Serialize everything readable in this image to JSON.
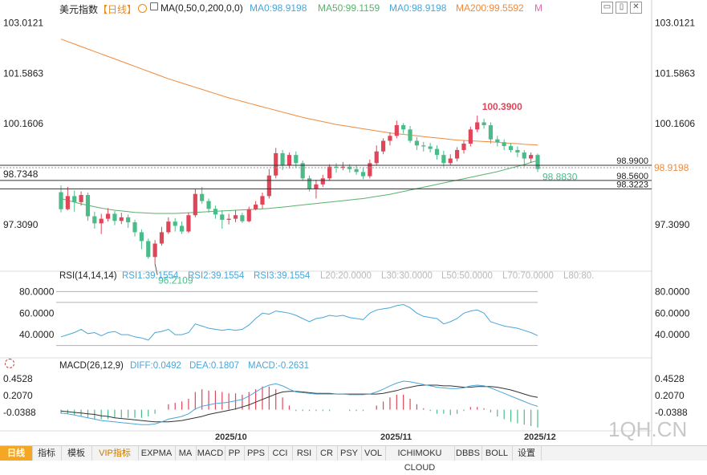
{
  "header": {
    "symbol": "美元指数",
    "period": "【日线】",
    "ma_params": "MA(0,50,0,200,0,0)",
    "ma_values": [
      {
        "label": "MA0:98.9198",
        "color": "#4aa6d8"
      },
      {
        "label": "MA50:99.1159",
        "color": "#58b26b"
      },
      {
        "label": "MA0:98.9198",
        "color": "#4aa6d8"
      },
      {
        "label": "MA200:99.5592",
        "color": "#ef8a3c"
      }
    ],
    "suffix": "M"
  },
  "rsi_header": {
    "title": "RSI(14,14,14)",
    "values": [
      {
        "label": "RSI1:39.1554",
        "color": "#4aa6d8"
      },
      {
        "label": "RSI2:39.1554",
        "color": "#4aa6d8"
      },
      {
        "label": "RSI3:39.1554",
        "color": "#4aa6d8"
      },
      {
        "label": "L20:20.0000",
        "color": "#b8b8b8"
      },
      {
        "label": "L30:30.0000",
        "color": "#b8b8b8"
      },
      {
        "label": "L50:50.0000",
        "color": "#b8b8b8"
      },
      {
        "label": "L70:70.0000",
        "color": "#b8b8b8"
      },
      {
        "label": "L80:80.",
        "color": "#b8b8b8"
      }
    ]
  },
  "macd_header": {
    "title": "MACD(26,12,9)",
    "values": [
      {
        "label": "DIFF:0.0492",
        "color": "#4aa6d8"
      },
      {
        "label": "DEA:0.1807",
        "color": "#4aa6d8"
      },
      {
        "label": "MACD:-0.2631",
        "color": "#4aa6d8"
      }
    ]
  },
  "toolbar": {
    "tabs": [
      "日线",
      "指标",
      "模板",
      "VIP指标",
      "EXPMA",
      "MA",
      "MACD",
      "PP",
      "PPS",
      "CCI",
      "RSI",
      "CR",
      "PSY",
      "VOL",
      "ICHIMOKU CLOUD",
      "DBBS",
      "BOLL",
      "设置"
    ]
  },
  "watermark": "1QH.CN",
  "colors": {
    "up": "#e0455a",
    "down": "#4cbb8a",
    "ma200": "#ef8a3c",
    "ma50": "#58b26b",
    "rsi": "#4aa6d8",
    "diff": "#4aa6d8",
    "dea": "#333333"
  },
  "chart_data": [
    {
      "type": "candlestick",
      "title": "美元指数 日线",
      "x": [
        "2025/10",
        "2025/11",
        "2025/12"
      ],
      "ylim": [
        96.0,
        103.2
      ],
      "y_ticks": [
        103.0121,
        101.5863,
        100.1606,
        98.7348,
        97.309
      ],
      "annotations": [
        {
          "text": "100.3900",
          "value": 100.39,
          "kind": "high"
        },
        {
          "text": "96.2109",
          "value": 96.2109,
          "kind": "low"
        },
        {
          "text": "98.8830",
          "value": 98.883,
          "kind": "last"
        }
      ],
      "hlines": [
        {
          "text": "98.9900",
          "value": 98.99
        },
        {
          "text": "98.5600",
          "value": 98.56
        },
        {
          "text": "98.3223",
          "value": 98.3223
        }
      ],
      "current_price": {
        "text": "98.9198",
        "value": 98.9198
      },
      "candles": [
        [
          98.23,
          97.75,
          98.42,
          97.66
        ],
        [
          97.75,
          98.12,
          98.38,
          97.72
        ],
        [
          98.12,
          97.95,
          98.28,
          97.68
        ],
        [
          97.95,
          98.15,
          98.25,
          97.85
        ],
        [
          98.15,
          97.55,
          98.22,
          97.42
        ],
        [
          97.55,
          97.35,
          97.68,
          97.2
        ],
        [
          97.35,
          97.48,
          97.62,
          97.05
        ],
        [
          97.48,
          97.62,
          97.78,
          97.4
        ],
        [
          97.62,
          97.42,
          97.7,
          97.3
        ],
        [
          97.42,
          97.52,
          97.65,
          97.33
        ],
        [
          97.52,
          97.38,
          97.6,
          97.22
        ],
        [
          97.38,
          97.1,
          97.45,
          96.98
        ],
        [
          97.1,
          96.85,
          97.18,
          96.62
        ],
        [
          96.85,
          96.4,
          96.92,
          96.35
        ],
        [
          96.4,
          96.78,
          96.88,
          96.21
        ],
        [
          96.78,
          97.1,
          97.25,
          96.72
        ],
        [
          97.1,
          97.4,
          97.52,
          97.05
        ],
        [
          97.4,
          97.28,
          97.5,
          97.12
        ],
        [
          97.28,
          97.12,
          97.4,
          97.05
        ],
        [
          97.12,
          97.58,
          97.65,
          97.08
        ],
        [
          97.58,
          98.18,
          98.32,
          97.52
        ],
        [
          98.18,
          97.98,
          98.38,
          97.9
        ],
        [
          97.98,
          97.76,
          98.05,
          97.65
        ],
        [
          97.76,
          97.6,
          97.85,
          97.48
        ],
        [
          97.6,
          97.45,
          97.72,
          97.2
        ],
        [
          97.45,
          97.48,
          97.62,
          97.32
        ],
        [
          97.48,
          97.58,
          97.72,
          97.38
        ],
        [
          97.58,
          97.41,
          97.65,
          97.36
        ],
        [
          97.41,
          97.75,
          97.82,
          97.38
        ],
        [
          97.75,
          97.88,
          97.98,
          97.72
        ],
        [
          97.88,
          98.12,
          98.22,
          97.75
        ],
        [
          98.12,
          98.7,
          98.88,
          98.05
        ],
        [
          98.7,
          99.33,
          99.48,
          98.62
        ],
        [
          99.33,
          98.98,
          99.42,
          98.85
        ],
        [
          98.98,
          99.28,
          99.35,
          98.9
        ],
        [
          99.28,
          99.05,
          99.38,
          98.92
        ],
        [
          99.05,
          98.62,
          99.12,
          98.55
        ],
        [
          98.62,
          98.32,
          98.7,
          98.25
        ],
        [
          98.32,
          98.45,
          98.58,
          98.05
        ],
        [
          98.45,
          98.62,
          98.72,
          98.38
        ],
        [
          98.62,
          98.95,
          99.02,
          98.55
        ],
        [
          98.95,
          98.92,
          99.05,
          98.78
        ],
        [
          98.92,
          98.95,
          99.08,
          98.85
        ],
        [
          98.95,
          98.88,
          99.02,
          98.78
        ],
        [
          98.88,
          98.8,
          98.98,
          98.72
        ],
        [
          98.8,
          98.68,
          98.92,
          98.6
        ],
        [
          98.68,
          99.05,
          99.15,
          98.62
        ],
        [
          99.05,
          99.38,
          99.55,
          99.0
        ],
        [
          99.38,
          99.68,
          99.75,
          99.3
        ],
        [
          99.68,
          99.82,
          99.92,
          99.55
        ],
        [
          99.82,
          100.12,
          100.25,
          99.75
        ],
        [
          100.12,
          100.0,
          100.18,
          99.88
        ],
        [
          100.0,
          99.68,
          100.1,
          99.62
        ],
        [
          99.68,
          99.55,
          99.78,
          99.42
        ],
        [
          99.55,
          99.52,
          99.65,
          99.38
        ],
        [
          99.52,
          99.45,
          99.62,
          99.35
        ],
        [
          99.45,
          99.28,
          99.55,
          99.15
        ],
        [
          99.28,
          99.05,
          99.4,
          98.95
        ],
        [
          99.05,
          99.18,
          99.3,
          98.98
        ],
        [
          99.18,
          99.42,
          99.5,
          99.1
        ],
        [
          99.42,
          99.6,
          99.68,
          99.32
        ],
        [
          99.6,
          100.0,
          100.08,
          99.52
        ],
        [
          100.0,
          100.2,
          100.39,
          99.92
        ],
        [
          100.2,
          100.12,
          100.3,
          100.02
        ],
        [
          100.12,
          99.72,
          100.2,
          99.6
        ],
        [
          99.72,
          99.64,
          99.82,
          99.52
        ],
        [
          99.64,
          99.53,
          99.72,
          99.42
        ],
        [
          99.53,
          99.42,
          99.62,
          99.35
        ],
        [
          99.42,
          99.35,
          99.52,
          99.22
        ],
        [
          99.35,
          99.18,
          99.42,
          98.95
        ],
        [
          99.18,
          99.28,
          99.35,
          99.05
        ],
        [
          99.28,
          98.883,
          99.32,
          98.8
        ]
      ],
      "ma200": [
        102.55,
        102.48,
        102.41,
        102.34,
        102.27,
        102.2,
        102.13,
        102.06,
        101.99,
        101.92,
        101.85,
        101.78,
        101.71,
        101.64,
        101.57,
        101.5,
        101.43,
        101.37,
        101.31,
        101.25,
        101.19,
        101.13,
        101.07,
        101.01,
        100.95,
        100.89,
        100.84,
        100.79,
        100.74,
        100.69,
        100.64,
        100.59,
        100.54,
        100.49,
        100.44,
        100.39,
        100.34,
        100.3,
        100.26,
        100.22,
        100.18,
        100.14,
        100.11,
        100.08,
        100.05,
        100.02,
        99.99,
        99.96,
        99.93,
        99.9,
        99.88,
        99.86,
        99.84,
        99.82,
        99.8,
        99.78,
        99.76,
        99.74,
        99.72,
        99.7,
        99.69,
        99.68,
        99.67,
        99.66,
        99.65,
        99.64,
        99.62,
        99.61,
        99.6,
        99.58,
        99.57,
        99.56
      ],
      "ma50": [
        98.05,
        98.0,
        97.95,
        97.9,
        97.86,
        97.82,
        97.78,
        97.75,
        97.72,
        97.7,
        97.68,
        97.66,
        97.65,
        97.64,
        97.63,
        97.63,
        97.63,
        97.63,
        97.64,
        97.65,
        97.66,
        97.67,
        97.68,
        97.69,
        97.7,
        97.71,
        97.72,
        97.73,
        97.74,
        97.75,
        97.76,
        97.77,
        97.79,
        97.81,
        97.83,
        97.85,
        97.87,
        97.89,
        97.91,
        97.93,
        97.95,
        97.97,
        97.99,
        98.01,
        98.03,
        98.05,
        98.08,
        98.11,
        98.14,
        98.17,
        98.21,
        98.25,
        98.29,
        98.33,
        98.37,
        98.41,
        98.45,
        98.49,
        98.53,
        98.57,
        98.61,
        98.65,
        98.69,
        98.73,
        98.77,
        98.81,
        98.86,
        98.91,
        98.96,
        99.01,
        99.07,
        99.12
      ]
    },
    {
      "type": "line",
      "title": "RSI(14,14,14)",
      "ylim": [
        20,
        90
      ],
      "y_ticks": [
        80.0,
        60.0,
        40.0
      ],
      "levels": [
        80,
        70,
        30
      ],
      "series": [
        {
          "name": "RSI1",
          "values": [
            38,
            40,
            42,
            45,
            41,
            42,
            39,
            42,
            43,
            40,
            40,
            38,
            37,
            35,
            42,
            43,
            45,
            40,
            40,
            42,
            50,
            48,
            46,
            45,
            44,
            45,
            44,
            45,
            49,
            55,
            60,
            59,
            62,
            61,
            60,
            58,
            55,
            52,
            55,
            56,
            58,
            57,
            58,
            56,
            55,
            54,
            60,
            63,
            64,
            65,
            67,
            68,
            65,
            60,
            57,
            56,
            55,
            50,
            52,
            55,
            60,
            62,
            63,
            60,
            52,
            50,
            48,
            47,
            46,
            44,
            42,
            39.16
          ]
        }
      ]
    },
    {
      "type": "line",
      "title": "MACD(26,12,9)",
      "ylim": [
        -0.3,
        0.62
      ],
      "y_ticks": [
        0.4528,
        0.207,
        -0.0388
      ],
      "series": [
        {
          "name": "DIFF",
          "values": [
            -0.05,
            -0.06,
            -0.08,
            -0.1,
            -0.12,
            -0.14,
            -0.16,
            -0.17,
            -0.18,
            -0.19,
            -0.2,
            -0.21,
            -0.22,
            -0.22,
            -0.21,
            -0.18,
            -0.14,
            -0.12,
            -0.1,
            -0.06,
            0.01,
            0.05,
            0.07,
            0.09,
            0.1,
            0.11,
            0.13,
            0.15,
            0.2,
            0.26,
            0.32,
            0.36,
            0.38,
            0.35,
            0.3,
            0.26,
            0.25,
            0.24,
            0.23,
            0.23,
            0.23,
            0.23,
            0.23,
            0.22,
            0.22,
            0.22,
            0.23,
            0.26,
            0.3,
            0.35,
            0.39,
            0.42,
            0.41,
            0.39,
            0.37,
            0.35,
            0.33,
            0.32,
            0.31,
            0.31,
            0.32,
            0.35,
            0.36,
            0.35,
            0.32,
            0.28,
            0.24,
            0.2,
            0.16,
            0.12,
            0.08,
            0.0492
          ]
        },
        {
          "name": "DEA",
          "values": [
            -0.02,
            -0.03,
            -0.04,
            -0.05,
            -0.06,
            -0.07,
            -0.09,
            -0.1,
            -0.12,
            -0.13,
            -0.14,
            -0.15,
            -0.16,
            -0.17,
            -0.18,
            -0.18,
            -0.18,
            -0.17,
            -0.16,
            -0.14,
            -0.12,
            -0.1,
            -0.07,
            -0.05,
            -0.03,
            -0.01,
            0.01,
            0.04,
            0.07,
            0.11,
            0.15,
            0.19,
            0.23,
            0.26,
            0.27,
            0.27,
            0.26,
            0.25,
            0.24,
            0.24,
            0.24,
            0.23,
            0.23,
            0.23,
            0.23,
            0.23,
            0.23,
            0.23,
            0.24,
            0.26,
            0.28,
            0.31,
            0.33,
            0.35,
            0.36,
            0.36,
            0.36,
            0.35,
            0.35,
            0.34,
            0.33,
            0.33,
            0.34,
            0.34,
            0.34,
            0.33,
            0.31,
            0.29,
            0.26,
            0.23,
            0.2,
            0.1807
          ]
        }
      ]
    }
  ]
}
